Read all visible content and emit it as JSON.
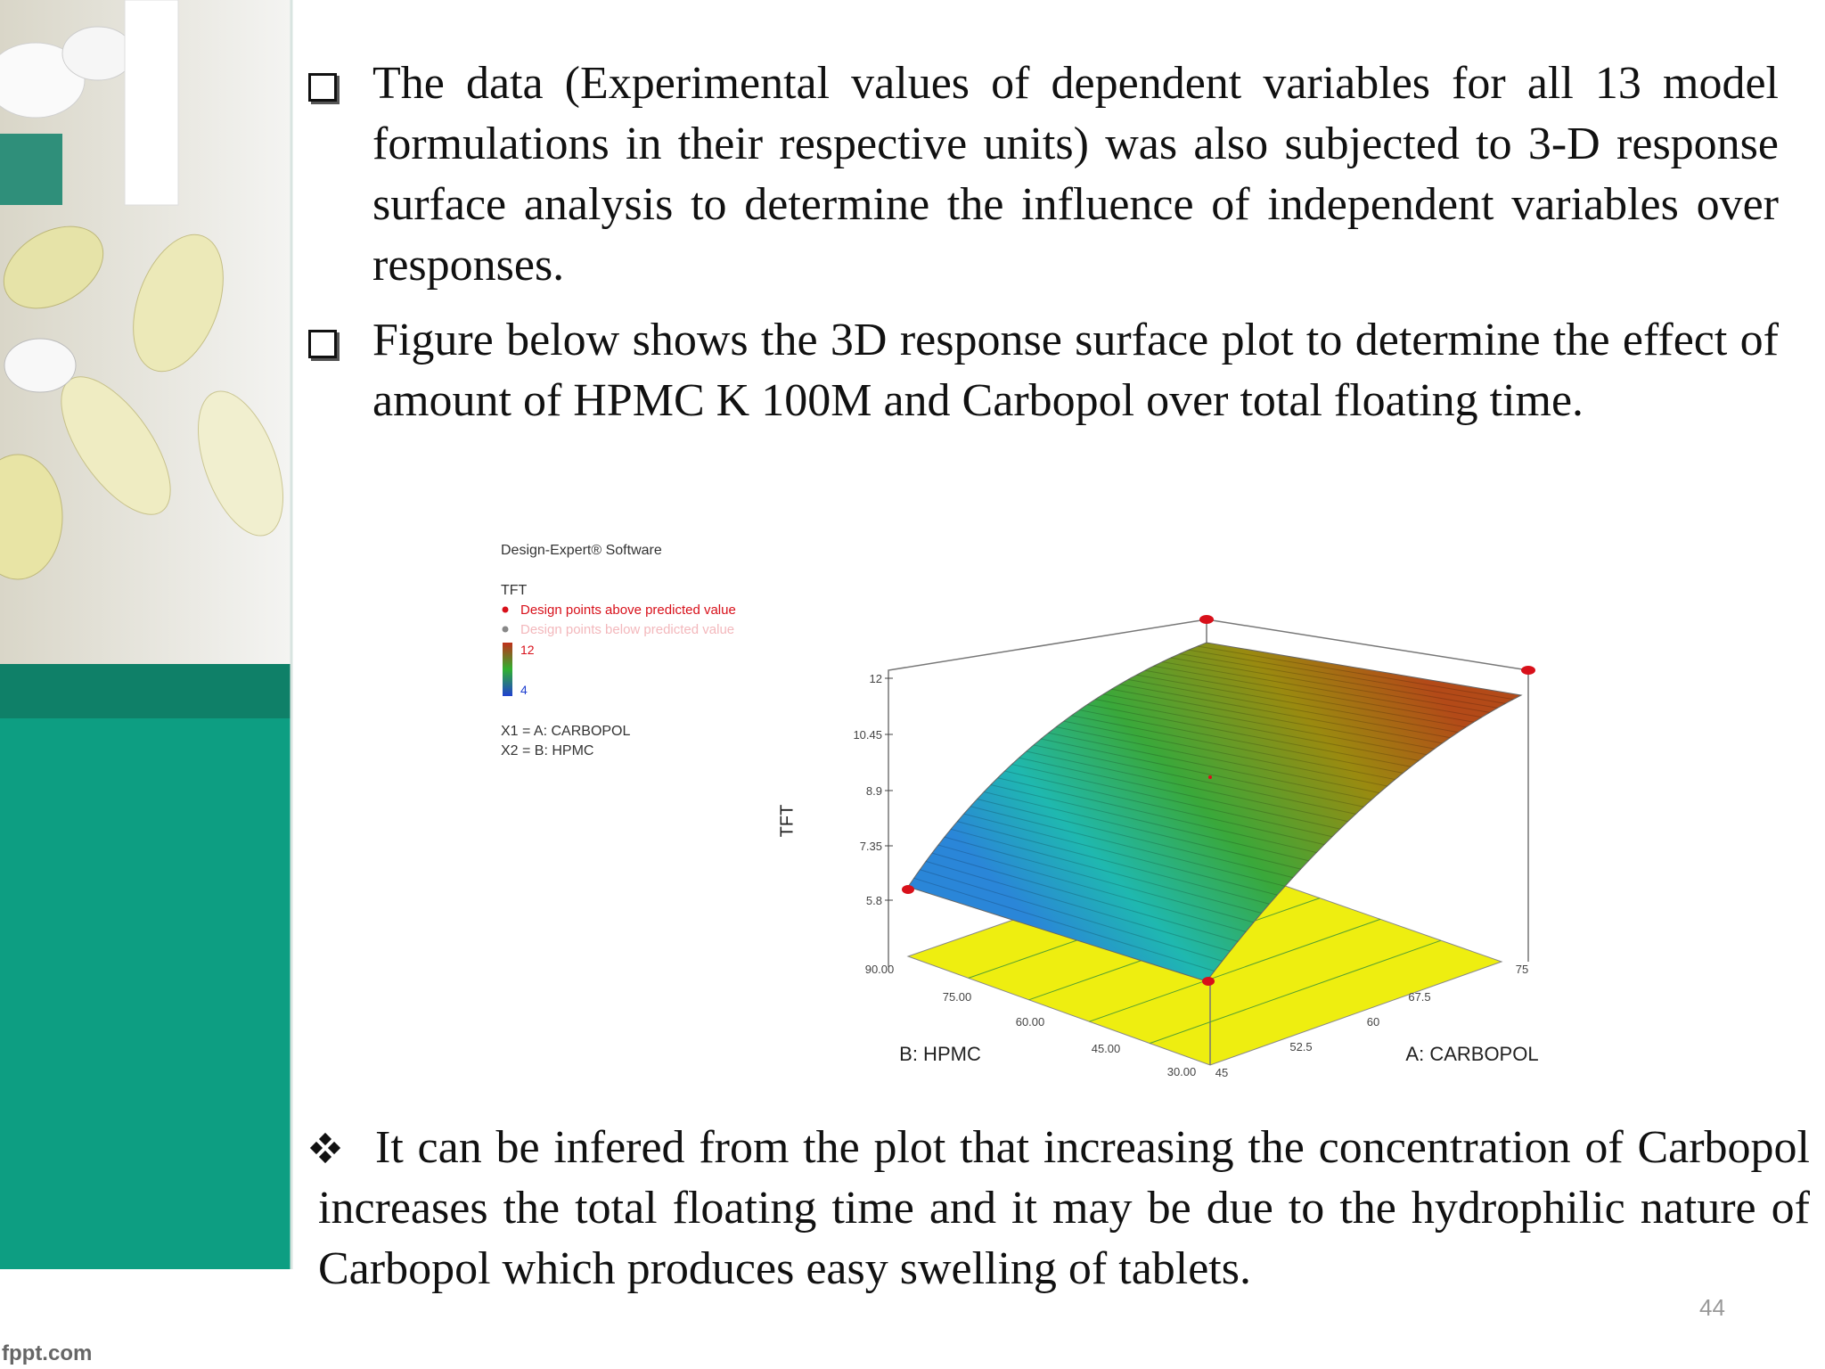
{
  "bullets": [
    "The data (Experimental values of dependent variables for all 13 model formulations in their respective units) was also subjected to 3-D response surface analysis to determine the influence of independent variables over responses.",
    "Figure below shows the 3D response surface plot to determine the effect of amount of HPMC K 100M and Carbopol over total floating time."
  ],
  "figure": {
    "software": "Design-Expert® Software",
    "response": "TFT",
    "legend": [
      "Design points above predicted value",
      "Design points below predicted value"
    ],
    "colorbar": {
      "max": "12",
      "min": "4"
    },
    "factors": [
      "X1 = A: CARBOPOL",
      "X2 = B: HPMC"
    ],
    "z_label": "TFT",
    "z_ticks": [
      "12",
      "10.45",
      "8.9",
      "7.35",
      "5.8"
    ],
    "x_label": "A: CARBOPOL",
    "x_ticks": [
      "45",
      "52.5",
      "60",
      "67.5",
      "75"
    ],
    "y_label": "B: HPMC",
    "y_ticks": [
      "90.00",
      "75.00",
      "60.00",
      "45.00",
      "30.00"
    ]
  },
  "conclusion": "It can be infered from the plot that increasing the concentration of Carbopol increases the total floating time and it may be due to the hydrophilic nature of Carbopol which produces easy swelling of tablets.",
  "page_number": "44",
  "footer": "fppt.com"
}
